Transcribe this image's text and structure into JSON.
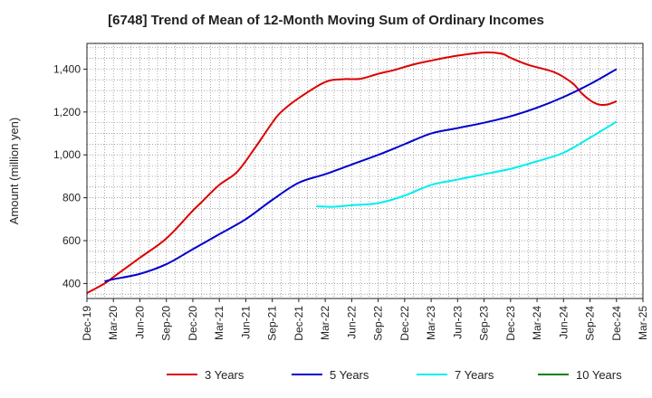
{
  "chart_data": {
    "type": "line",
    "title": "[6748]  Trend of Mean of 12-Month Moving Sum of Ordinary Incomes",
    "ylabel": "Amount (million yen)",
    "xlabel": "",
    "ylim": [
      330,
      1520
    ],
    "yticks": [
      400,
      600,
      800,
      1000,
      1200,
      1400
    ],
    "ytick_labels": [
      "400",
      "600",
      "800",
      "1,000",
      "1,200",
      "1,400"
    ],
    "x_start": "Dec-19",
    "x_months": 63,
    "xticks": [
      0,
      3,
      6,
      9,
      12,
      15,
      18,
      21,
      24,
      27,
      30,
      33,
      36,
      39,
      42,
      45,
      48,
      51,
      54,
      57,
      60,
      63
    ],
    "xtick_labels": [
      "Dec-19",
      "Mar-20",
      "Jun-20",
      "Sep-20",
      "Dec-20",
      "Mar-21",
      "Jun-21",
      "Sep-21",
      "Dec-21",
      "Mar-22",
      "Jun-22",
      "Sep-22",
      "Dec-22",
      "Mar-23",
      "Jun-23",
      "Sep-23",
      "Dec-23",
      "Mar-24",
      "Jun-24",
      "Sep-24",
      "Dec-24",
      "Mar-25"
    ],
    "grid": true,
    "legend_position": "bottom",
    "series": [
      {
        "name": "3 Years",
        "color": "#dd0000",
        "x": [
          0,
          2,
          3,
          6,
          9,
          12,
          13,
          15,
          17,
          19,
          21,
          22,
          24,
          27,
          29,
          31,
          33,
          35,
          37,
          39,
          42,
          45,
          47,
          48,
          50,
          53,
          55,
          56,
          57,
          58,
          59,
          60
        ],
        "values": [
          355,
          400,
          430,
          520,
          610,
          740,
          780,
          860,
          920,
          1030,
          1150,
          1200,
          1265,
          1340,
          1353,
          1355,
          1378,
          1398,
          1422,
          1440,
          1463,
          1478,
          1472,
          1453,
          1420,
          1385,
          1335,
          1290,
          1255,
          1235,
          1235,
          1250
        ]
      },
      {
        "name": "5 Years",
        "color": "#0000cc",
        "x": [
          2,
          3,
          6,
          9,
          12,
          15,
          18,
          21,
          24,
          27,
          30,
          33,
          36,
          39,
          42,
          45,
          48,
          51,
          54,
          57,
          60
        ],
        "values": [
          410,
          420,
          445,
          490,
          560,
          630,
          700,
          790,
          870,
          910,
          955,
          1000,
          1050,
          1100,
          1125,
          1150,
          1180,
          1220,
          1270,
          1330,
          1400
        ]
      },
      {
        "name": "7 Years",
        "color": "#00eeee",
        "x": [
          26,
          28,
          30,
          33,
          36,
          39,
          42,
          45,
          48,
          51,
          54,
          57,
          60
        ],
        "values": [
          760,
          758,
          765,
          775,
          810,
          860,
          885,
          910,
          935,
          970,
          1010,
          1080,
          1155
        ]
      },
      {
        "name": "10 Years",
        "color": "#008000",
        "x": [],
        "values": []
      }
    ]
  }
}
